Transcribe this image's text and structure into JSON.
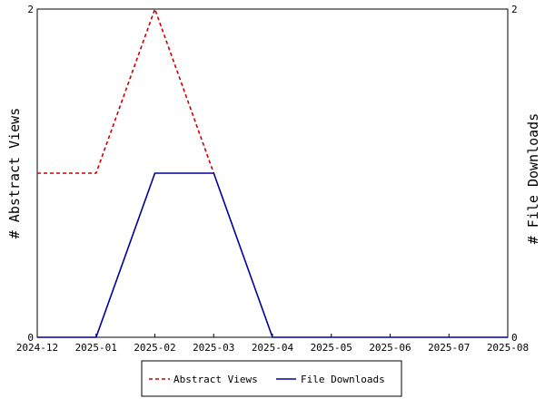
{
  "chart_data": {
    "type": "line",
    "title": "",
    "x": [
      "2024-12",
      "2025-01",
      "2025-02",
      "2025-03",
      "2025-04",
      "2025-05",
      "2025-06",
      "2025-07",
      "2025-08"
    ],
    "ylabel_left": "# Abstract Views",
    "ylabel_right": "# File Downloads",
    "ylim_left": [
      0,
      2
    ],
    "ylim_right": [
      0,
      2
    ],
    "yticks_left": [
      "0",
      "2"
    ],
    "yticks_right": [
      "0",
      "2"
    ],
    "series": [
      {
        "name": "Abstract Views",
        "axis": "left",
        "color": "#cc0000",
        "dash": true,
        "values": [
          1,
          1,
          2,
          1,
          null,
          null,
          null,
          null,
          null
        ]
      },
      {
        "name": "File Downloads",
        "axis": "right",
        "color": "#00009c",
        "dash": false,
        "values": [
          0,
          0,
          1,
          1,
          0,
          0,
          0,
          0,
          0
        ]
      }
    ],
    "legend_position": "bottom-center",
    "grid": false
  }
}
